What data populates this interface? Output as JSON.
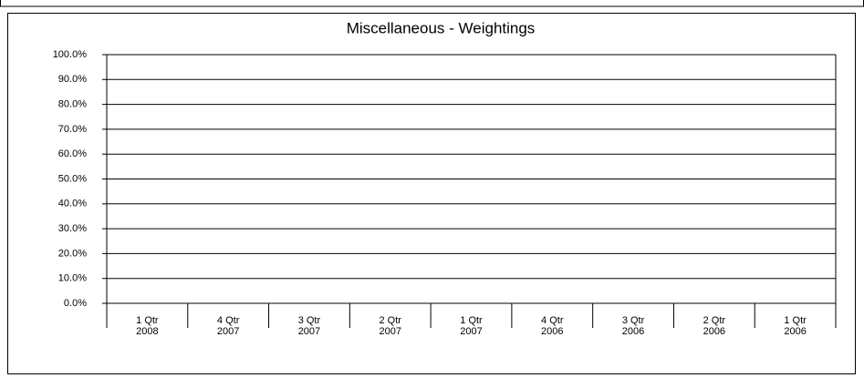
{
  "chart_data": {
    "type": "bar",
    "title": "Miscellaneous  -  Weightings",
    "categories": [
      "1 Qtr\n2008",
      "4 Qtr\n2007",
      "3 Qtr\n2007",
      "2 Qtr\n2007",
      "1 Qtr\n2007",
      "4 Qtr\n2006",
      "3 Qtr\n2006",
      "2 Qtr\n2006",
      "1 Qtr\n2006"
    ],
    "ylim": [
      0,
      100
    ],
    "yticks": [
      {
        "value": 0,
        "label": "0.0%"
      },
      {
        "value": 10,
        "label": "10.0%"
      },
      {
        "value": 20,
        "label": "20.0%"
      },
      {
        "value": 30,
        "label": "30.0%"
      },
      {
        "value": 40,
        "label": "40.0%"
      },
      {
        "value": 50,
        "label": "50.0%"
      },
      {
        "value": 60,
        "label": "60.0%"
      },
      {
        "value": 70,
        "label": "70.0%"
      },
      {
        "value": 80,
        "label": "80.0%"
      },
      {
        "value": 90,
        "label": "90.0%"
      },
      {
        "value": 100,
        "label": "100.0%"
      }
    ],
    "grid": true
  }
}
